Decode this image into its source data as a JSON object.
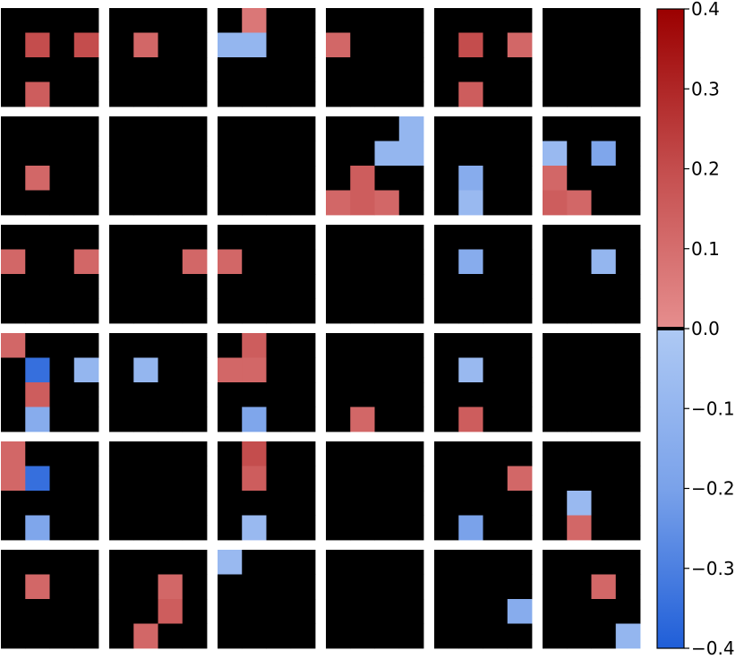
{
  "chart_data": {
    "type": "heatmap",
    "title": "",
    "xlabel": "",
    "ylabel": "",
    "grid": {
      "rows": 6,
      "cols": 6,
      "cell_rows": 4,
      "cell_cols": 4
    },
    "colormap": {
      "name": "diverging-blue-red",
      "range": [
        -0.4,
        0.4
      ],
      "zero_color": "#000000",
      "stops_negative": [
        "#aec9f4",
        "#7aa2ea",
        "#1f5ed8"
      ],
      "stops_positive": [
        "#e68e8e",
        "#c44d4d",
        "#9b0000"
      ]
    },
    "colorbar": {
      "ticks": [
        0.4,
        0.3,
        0.2,
        0.1,
        0.0,
        -0.1,
        -0.2,
        -0.3,
        -0.4
      ],
      "tick_labels": [
        "0.4",
        "0.3",
        "0.2",
        "0.1",
        "0.0",
        "−0.1",
        "−0.2",
        "−0.3",
        "−0.4"
      ]
    },
    "panels": [
      [
        0,
        0,
        0,
        0,
        0,
        0.2,
        0,
        0.2,
        0,
        0,
        0,
        0,
        0,
        0.15,
        0,
        0
      ],
      [
        0,
        0,
        0,
        0,
        0,
        0.12,
        0,
        0,
        0,
        0,
        0,
        0,
        0,
        0,
        0,
        0
      ],
      [
        0,
        0.07,
        0,
        0,
        -0.1,
        -0.1,
        0,
        0,
        0,
        0,
        0,
        0,
        0,
        0,
        0,
        0
      ],
      [
        0,
        0,
        0,
        0,
        0.12,
        0,
        0,
        0,
        0,
        0,
        0,
        0,
        0,
        0,
        0,
        0
      ],
      [
        0,
        0,
        0,
        0,
        0,
        0.2,
        0,
        0.12,
        0,
        0,
        0,
        0,
        0,
        0.15,
        0,
        0
      ],
      [
        0,
        0,
        0,
        0,
        0,
        0,
        0,
        0,
        0,
        0,
        0,
        0,
        0,
        0,
        0,
        0
      ],
      [
        0,
        0,
        0,
        0,
        0,
        0,
        0,
        0,
        0,
        0.12,
        0,
        0,
        0,
        0,
        0,
        0
      ],
      [
        0,
        0,
        0,
        0,
        0,
        0,
        0,
        0,
        0,
        0,
        0,
        0,
        0,
        0,
        0,
        0
      ],
      [
        0,
        0,
        0,
        0,
        0,
        0,
        0,
        0,
        0,
        0,
        0,
        0,
        0,
        0,
        0,
        0
      ],
      [
        0,
        0,
        0,
        -0.1,
        0,
        0,
        -0.1,
        -0.1,
        0,
        0.15,
        0,
        0,
        0.12,
        0.15,
        0.12,
        0
      ],
      [
        0,
        0,
        0,
        0,
        0,
        0,
        0,
        0,
        0,
        -0.15,
        0,
        0,
        0,
        -0.08,
        0,
        0
      ],
      [
        0,
        0,
        0,
        0,
        -0.08,
        0,
        -0.18,
        0,
        0.12,
        0,
        0,
        0,
        0.15,
        0.12,
        0,
        0
      ],
      [
        0,
        0,
        0,
        0,
        0.12,
        0,
        0,
        0.12,
        0,
        0,
        0,
        0,
        0,
        0,
        0,
        0
      ],
      [
        0,
        0,
        0,
        0,
        0,
        0,
        0,
        0.12,
        0,
        0,
        0,
        0,
        0,
        0,
        0,
        0
      ],
      [
        0,
        0,
        0,
        0,
        0.12,
        0,
        0,
        0,
        0,
        0,
        0,
        0,
        0,
        0,
        0,
        0
      ],
      [
        0,
        0,
        0,
        0,
        0,
        0,
        0,
        0,
        0,
        0,
        0,
        0,
        0,
        0,
        0,
        0
      ],
      [
        0,
        0,
        0,
        0,
        0,
        -0.15,
        0,
        0,
        0,
        0,
        0,
        0,
        0,
        0,
        0,
        0
      ],
      [
        0,
        0,
        0,
        0,
        0,
        0,
        -0.1,
        0,
        0,
        0,
        0,
        0,
        0,
        0,
        0,
        0
      ],
      [
        0.12,
        0,
        0,
        0,
        0,
        -0.35,
        0,
        -0.1,
        0,
        0.15,
        0,
        0,
        0,
        -0.15,
        0,
        0
      ],
      [
        0,
        0,
        0,
        0,
        0,
        -0.1,
        0,
        0,
        0,
        0,
        0,
        0,
        0,
        0,
        0,
        0
      ],
      [
        0,
        0.15,
        0,
        0,
        0.12,
        0.12,
        0,
        0,
        0,
        0,
        0,
        0,
        0,
        -0.18,
        0,
        0
      ],
      [
        0,
        0,
        0,
        0,
        0,
        0,
        0,
        0,
        0,
        0,
        0,
        0,
        0,
        0.12,
        0,
        0
      ],
      [
        0,
        0,
        0,
        0,
        0,
        -0.08,
        0,
        0,
        0,
        0,
        0,
        0,
        0,
        0.15,
        0,
        0
      ],
      [
        0,
        0,
        0,
        0,
        0,
        0,
        0,
        0,
        0,
        0,
        0,
        0,
        0,
        0,
        0,
        0
      ],
      [
        0.12,
        0,
        0,
        0,
        0.12,
        -0.35,
        0,
        0,
        0,
        0,
        0,
        0,
        0,
        -0.18,
        0,
        0
      ],
      [
        0,
        0,
        0,
        0,
        0,
        0,
        0,
        0,
        0,
        0,
        0,
        0,
        0,
        0,
        0,
        0
      ],
      [
        0,
        0.2,
        0,
        0,
        0,
        0.15,
        0,
        0,
        0,
        0,
        0,
        0,
        0,
        -0.08,
        0,
        0
      ],
      [
        0,
        0,
        0,
        0,
        0,
        0,
        0,
        0,
        0,
        0,
        0,
        0,
        0,
        0,
        0,
        0
      ],
      [
        0,
        0,
        0,
        0,
        0,
        0,
        0,
        0.12,
        0,
        0,
        0,
        0,
        0,
        -0.2,
        0,
        0
      ],
      [
        0,
        0,
        0,
        0,
        0,
        0,
        0,
        0,
        0,
        -0.08,
        0,
        0,
        0,
        0.12,
        0,
        0
      ],
      [
        0,
        0,
        0,
        0,
        0,
        0.12,
        0,
        0,
        0,
        0,
        0,
        0,
        0,
        0,
        0,
        0
      ],
      [
        0,
        0,
        0,
        0,
        0,
        0,
        0.12,
        0,
        0,
        0,
        0.15,
        0,
        0,
        0.12,
        0,
        0
      ],
      [
        -0.08,
        0,
        0,
        0,
        0,
        0,
        0,
        0,
        0,
        0,
        0,
        0,
        0,
        0,
        0,
        0
      ],
      [
        0,
        0,
        0,
        0,
        0,
        0,
        0,
        0,
        0,
        0,
        0,
        0,
        0,
        0,
        0,
        0
      ],
      [
        0,
        0,
        0,
        0,
        0,
        0,
        0,
        0,
        0,
        0,
        0,
        -0.15,
        0,
        0,
        0,
        0
      ],
      [
        0,
        0,
        0,
        0,
        0,
        0,
        0.12,
        0,
        0,
        0,
        0,
        0,
        0,
        0,
        0,
        -0.1
      ]
    ]
  }
}
